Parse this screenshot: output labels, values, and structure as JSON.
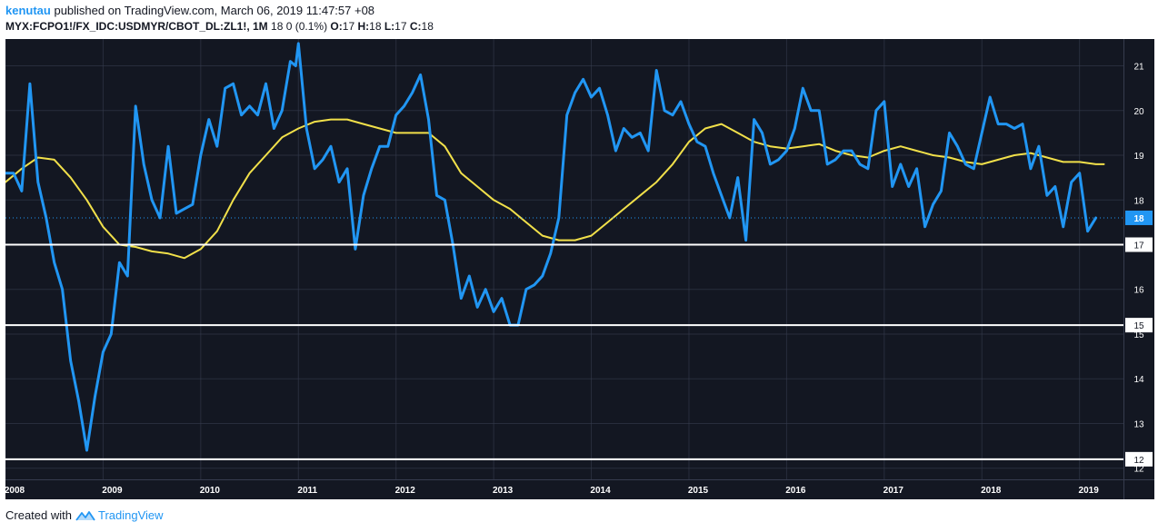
{
  "header": {
    "author": "kenutau",
    "published": "published on TradingView.com, March 06, 2019 11:47:57 +08",
    "symbol": "MYX:FCPO1!/FX_IDC:USDMYR/CBOT_DL:ZL1!, 1M",
    "quote": "18 0 (0.1%)",
    "o_label": "O:",
    "o_val": "17",
    "h_label": "H:",
    "h_val": "18",
    "l_label": "L:",
    "l_val": "17",
    "c_label": "C:",
    "c_val": "18"
  },
  "footer": {
    "created": "Created with",
    "brand": "TradingView"
  },
  "colors": {
    "background": "#131722",
    "grid": "#363c4e",
    "price_line": "#2196f3",
    "ma_line": "#f1e04a",
    "hline": "#ffffff",
    "axis_text": "#ffffff",
    "last_price_badge": "#2196f3"
  },
  "chart_data": {
    "type": "line",
    "x_ticks": [
      "2008",
      "2009",
      "2010",
      "2011",
      "2012",
      "2013",
      "2014",
      "2015",
      "2016",
      "2017",
      "2018",
      "2019"
    ],
    "y_ticks": [
      12,
      13,
      14,
      15,
      16,
      17,
      18,
      19,
      20,
      21
    ],
    "ylim": [
      11.75,
      21.6
    ],
    "xlim": [
      2008.0,
      2019.45
    ],
    "last_value_label": "18",
    "horizontal_lines": [
      {
        "value": 17.0,
        "label": "17"
      },
      {
        "value": 15.2,
        "label": "15"
      },
      {
        "value": 12.2,
        "label": "12"
      }
    ],
    "series": [
      {
        "values": [
          [
            2008.0,
            18.6
          ],
          [
            2008.083,
            18.6
          ],
          [
            2008.167,
            18.2
          ],
          [
            2008.25,
            20.6
          ],
          [
            2008.333,
            18.4
          ],
          [
            2008.417,
            17.6
          ],
          [
            2008.5,
            16.6
          ],
          [
            2008.583,
            16.0
          ],
          [
            2008.667,
            14.4
          ],
          [
            2008.75,
            13.5
          ],
          [
            2008.833,
            12.4
          ],
          [
            2008.917,
            13.6
          ],
          [
            2009.0,
            14.6
          ],
          [
            2009.083,
            15.0
          ],
          [
            2009.167,
            16.6
          ],
          [
            2009.25,
            16.3
          ],
          [
            2009.333,
            20.1
          ],
          [
            2009.417,
            18.8
          ],
          [
            2009.5,
            18.0
          ],
          [
            2009.583,
            17.6
          ],
          [
            2009.667,
            19.2
          ],
          [
            2009.75,
            17.7
          ],
          [
            2009.833,
            17.8
          ],
          [
            2009.917,
            17.9
          ],
          [
            2010.0,
            19.0
          ],
          [
            2010.083,
            19.8
          ],
          [
            2010.167,
            19.2
          ],
          [
            2010.25,
            20.5
          ],
          [
            2010.333,
            20.6
          ],
          [
            2010.417,
            19.9
          ],
          [
            2010.5,
            20.1
          ],
          [
            2010.583,
            19.9
          ],
          [
            2010.667,
            20.6
          ],
          [
            2010.75,
            19.6
          ],
          [
            2010.833,
            20.0
          ],
          [
            2010.917,
            21.1
          ],
          [
            2010.972,
            21.0
          ],
          [
            2011.0,
            21.5
          ],
          [
            2011.083,
            19.6
          ],
          [
            2011.167,
            18.7
          ],
          [
            2011.25,
            18.9
          ],
          [
            2011.333,
            19.2
          ],
          [
            2011.417,
            18.4
          ],
          [
            2011.5,
            18.7
          ],
          [
            2011.583,
            16.9
          ],
          [
            2011.667,
            18.1
          ],
          [
            2011.75,
            18.7
          ],
          [
            2011.833,
            19.2
          ],
          [
            2011.917,
            19.2
          ],
          [
            2012.0,
            19.9
          ],
          [
            2012.083,
            20.1
          ],
          [
            2012.167,
            20.4
          ],
          [
            2012.25,
            20.8
          ],
          [
            2012.333,
            19.8
          ],
          [
            2012.417,
            18.1
          ],
          [
            2012.5,
            18.0
          ],
          [
            2012.583,
            17.0
          ],
          [
            2012.667,
            15.8
          ],
          [
            2012.75,
            16.3
          ],
          [
            2012.833,
            15.6
          ],
          [
            2012.917,
            16.0
          ],
          [
            2013.0,
            15.5
          ],
          [
            2013.083,
            15.8
          ],
          [
            2013.167,
            15.2
          ],
          [
            2013.25,
            15.2
          ],
          [
            2013.333,
            16.0
          ],
          [
            2013.417,
            16.1
          ],
          [
            2013.5,
            16.3
          ],
          [
            2013.583,
            16.8
          ],
          [
            2013.667,
            17.6
          ],
          [
            2013.75,
            19.9
          ],
          [
            2013.833,
            20.4
          ],
          [
            2013.917,
            20.7
          ],
          [
            2014.0,
            20.3
          ],
          [
            2014.083,
            20.5
          ],
          [
            2014.167,
            19.9
          ],
          [
            2014.25,
            19.1
          ],
          [
            2014.333,
            19.6
          ],
          [
            2014.417,
            19.4
          ],
          [
            2014.5,
            19.5
          ],
          [
            2014.583,
            19.1
          ],
          [
            2014.667,
            20.9
          ],
          [
            2014.75,
            20.0
          ],
          [
            2014.833,
            19.9
          ],
          [
            2014.917,
            20.2
          ],
          [
            2015.0,
            19.7
          ],
          [
            2015.083,
            19.3
          ],
          [
            2015.167,
            19.2
          ],
          [
            2015.25,
            18.6
          ],
          [
            2015.333,
            18.1
          ],
          [
            2015.417,
            17.6
          ],
          [
            2015.5,
            18.5
          ],
          [
            2015.583,
            17.1
          ],
          [
            2015.667,
            19.8
          ],
          [
            2015.75,
            19.5
          ],
          [
            2015.833,
            18.8
          ],
          [
            2015.917,
            18.9
          ],
          [
            2016.0,
            19.1
          ],
          [
            2016.083,
            19.6
          ],
          [
            2016.167,
            20.5
          ],
          [
            2016.25,
            20.0
          ],
          [
            2016.333,
            20.0
          ],
          [
            2016.417,
            18.8
          ],
          [
            2016.5,
            18.9
          ],
          [
            2016.583,
            19.1
          ],
          [
            2016.667,
            19.1
          ],
          [
            2016.75,
            18.8
          ],
          [
            2016.833,
            18.7
          ],
          [
            2016.917,
            20.0
          ],
          [
            2017.0,
            20.2
          ],
          [
            2017.083,
            18.3
          ],
          [
            2017.167,
            18.8
          ],
          [
            2017.25,
            18.3
          ],
          [
            2017.333,
            18.7
          ],
          [
            2017.417,
            17.4
          ],
          [
            2017.5,
            17.9
          ],
          [
            2017.583,
            18.2
          ],
          [
            2017.667,
            19.5
          ],
          [
            2017.75,
            19.2
          ],
          [
            2017.833,
            18.8
          ],
          [
            2017.917,
            18.7
          ],
          [
            2018.0,
            19.5
          ],
          [
            2018.083,
            20.3
          ],
          [
            2018.167,
            19.7
          ],
          [
            2018.25,
            19.7
          ],
          [
            2018.333,
            19.6
          ],
          [
            2018.417,
            19.7
          ],
          [
            2018.5,
            18.7
          ],
          [
            2018.583,
            19.2
          ],
          [
            2018.667,
            18.1
          ],
          [
            2018.75,
            18.3
          ],
          [
            2018.833,
            17.4
          ],
          [
            2018.917,
            18.4
          ],
          [
            2019.0,
            18.6
          ],
          [
            2019.083,
            17.3
          ],
          [
            2019.167,
            17.6
          ]
        ]
      },
      {
        "values": [
          [
            2008.0,
            18.4
          ],
          [
            2008.167,
            18.7
          ],
          [
            2008.333,
            18.95
          ],
          [
            2008.5,
            18.9
          ],
          [
            2008.667,
            18.5
          ],
          [
            2008.833,
            18.0
          ],
          [
            2009.0,
            17.4
          ],
          [
            2009.167,
            17.0
          ],
          [
            2009.333,
            16.95
          ],
          [
            2009.5,
            16.85
          ],
          [
            2009.667,
            16.8
          ],
          [
            2009.833,
            16.7
          ],
          [
            2010.0,
            16.9
          ],
          [
            2010.167,
            17.3
          ],
          [
            2010.333,
            18.0
          ],
          [
            2010.5,
            18.6
          ],
          [
            2010.667,
            19.0
          ],
          [
            2010.833,
            19.4
          ],
          [
            2011.0,
            19.6
          ],
          [
            2011.167,
            19.75
          ],
          [
            2011.333,
            19.8
          ],
          [
            2011.5,
            19.8
          ],
          [
            2011.667,
            19.7
          ],
          [
            2011.833,
            19.6
          ],
          [
            2012.0,
            19.5
          ],
          [
            2012.167,
            19.5
          ],
          [
            2012.333,
            19.5
          ],
          [
            2012.5,
            19.2
          ],
          [
            2012.667,
            18.6
          ],
          [
            2012.833,
            18.3
          ],
          [
            2013.0,
            18.0
          ],
          [
            2013.167,
            17.8
          ],
          [
            2013.333,
            17.5
          ],
          [
            2013.5,
            17.2
          ],
          [
            2013.667,
            17.1
          ],
          [
            2013.833,
            17.1
          ],
          [
            2014.0,
            17.2
          ],
          [
            2014.167,
            17.5
          ],
          [
            2014.333,
            17.8
          ],
          [
            2014.5,
            18.1
          ],
          [
            2014.667,
            18.4
          ],
          [
            2014.833,
            18.8
          ],
          [
            2015.0,
            19.3
          ],
          [
            2015.167,
            19.6
          ],
          [
            2015.333,
            19.7
          ],
          [
            2015.5,
            19.5
          ],
          [
            2015.667,
            19.3
          ],
          [
            2015.833,
            19.2
          ],
          [
            2016.0,
            19.15
          ],
          [
            2016.167,
            19.2
          ],
          [
            2016.333,
            19.25
          ],
          [
            2016.5,
            19.1
          ],
          [
            2016.667,
            19.0
          ],
          [
            2016.833,
            18.95
          ],
          [
            2017.0,
            19.1
          ],
          [
            2017.167,
            19.2
          ],
          [
            2017.333,
            19.1
          ],
          [
            2017.5,
            19.0
          ],
          [
            2017.667,
            18.95
          ],
          [
            2017.833,
            18.85
          ],
          [
            2018.0,
            18.8
          ],
          [
            2018.167,
            18.9
          ],
          [
            2018.333,
            19.0
          ],
          [
            2018.5,
            19.05
          ],
          [
            2018.667,
            18.95
          ],
          [
            2018.833,
            18.85
          ],
          [
            2019.0,
            18.85
          ],
          [
            2019.167,
            18.8
          ],
          [
            2019.25,
            18.8
          ]
        ]
      }
    ]
  }
}
